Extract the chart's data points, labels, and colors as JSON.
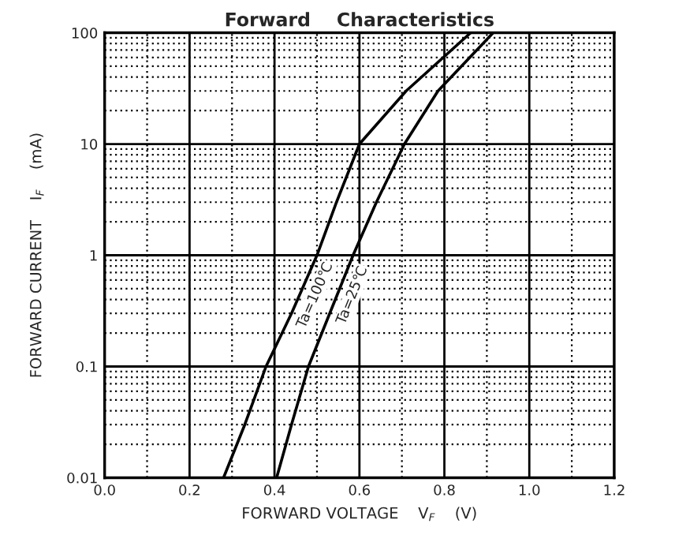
{
  "chart_data": {
    "type": "line",
    "title": "Forward    Characteristics",
    "xlabel": "FORWARD VOLTAGE    V$_{F}$    (V)",
    "ylabel": "FORWARD CURRENT    I$_{F}$    (mA)",
    "log": "y",
    "xlim": [
      0.0,
      1.2
    ],
    "ylim": [
      0.01,
      100
    ],
    "xticks": [
      {
        "value": 0,
        "label": "0.0"
      },
      0.2,
      0.4,
      0.6,
      0.8,
      {
        "value": 1,
        "label": "1.0"
      },
      1.2
    ],
    "yticks": [
      0.01,
      0.1,
      1,
      10,
      100
    ],
    "grid": true,
    "marker": "none",
    "line_style": "solid",
    "series": [
      {
        "name": "Ta=100℃",
        "color": "#000000",
        "x": [
          0.28,
          0.33,
          0.38,
          0.44,
          0.5,
          0.546,
          0.6,
          0.71,
          0.862
        ],
        "values": [
          0.01,
          0.03,
          0.1,
          0.3,
          1,
          3,
          10,
          30,
          100
        ]
      },
      {
        "name": "Ta=25℃",
        "color": "#000000",
        "x": [
          0.405,
          0.44,
          0.48,
          0.53,
          0.585,
          0.64,
          0.706,
          0.785,
          0.915
        ],
        "values": [
          0.01,
          0.03,
          0.1,
          0.3,
          1,
          3,
          10,
          30,
          100
        ]
      }
    ]
  }
}
